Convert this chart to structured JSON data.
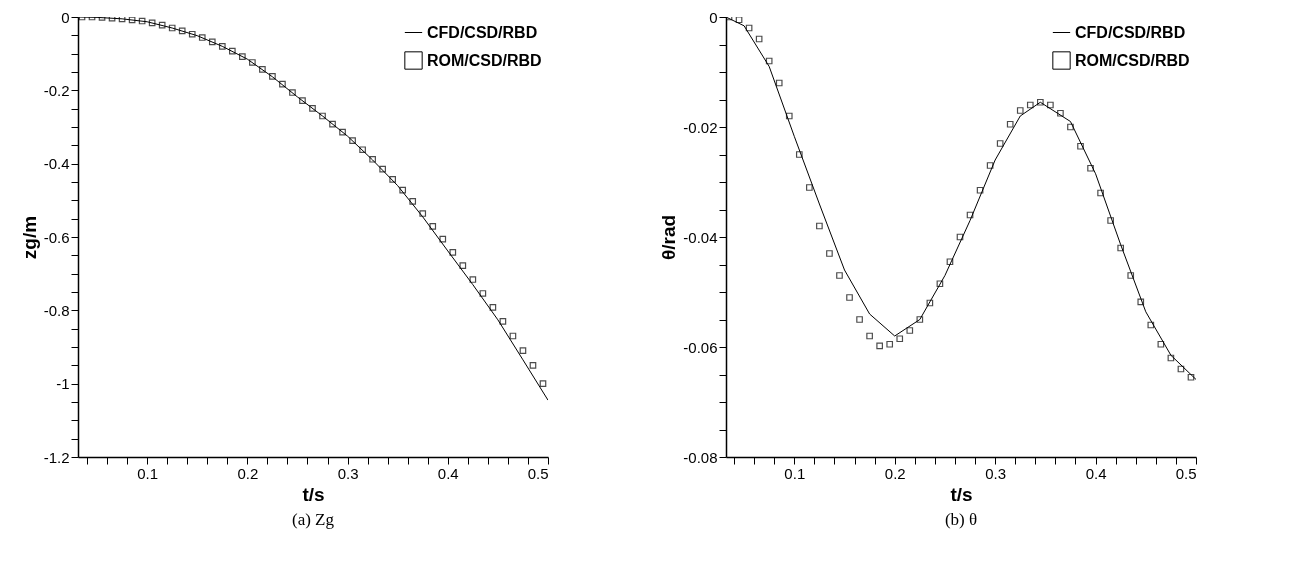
{
  "chart_data": [
    {
      "type": "line",
      "xlabel": "t/s",
      "ylabel": "zg/m",
      "annotations": [
        "(a) Zg"
      ],
      "legend": "top right",
      "grid": false,
      "xlim": [
        0.031,
        0.5
      ],
      "xticks": [
        {
          "value": 0.04,
          "label": null
        },
        {
          "value": 0.06,
          "label": null
        },
        {
          "value": 0.08,
          "label": null
        },
        0.1,
        {
          "value": 0.12,
          "label": null
        },
        {
          "value": 0.14,
          "label": null
        },
        {
          "value": 0.16,
          "label": null
        },
        {
          "value": 0.18,
          "label": null
        },
        0.2,
        {
          "value": 0.22,
          "label": null
        },
        {
          "value": 0.24,
          "label": null
        },
        {
          "value": 0.26,
          "label": null
        },
        {
          "value": 0.28,
          "label": null
        },
        0.3,
        {
          "value": 0.32,
          "label": null
        },
        {
          "value": 0.34,
          "label": null
        },
        {
          "value": 0.36,
          "label": null
        },
        {
          "value": 0.38,
          "label": null
        },
        0.4,
        {
          "value": 0.42,
          "label": null
        },
        {
          "value": 0.44,
          "label": null
        },
        {
          "value": 0.46,
          "label": null
        },
        {
          "value": 0.48,
          "label": null
        },
        0.5
      ],
      "ylim": [
        -1.2,
        0
      ],
      "yticks": [
        -1.2,
        {
          "value": -1.15,
          "label": null
        },
        {
          "value": -1.1,
          "label": null
        },
        {
          "value": -1.05,
          "label": null
        },
        -1,
        {
          "value": -0.95,
          "label": null
        },
        {
          "value": -0.9,
          "label": null
        },
        {
          "value": -0.85,
          "label": null
        },
        -0.8,
        {
          "value": -0.75,
          "label": null
        },
        {
          "value": -0.7,
          "label": null
        },
        {
          "value": -0.65,
          "label": null
        },
        -0.6,
        {
          "value": -0.55,
          "label": null
        },
        {
          "value": -0.5,
          "label": null
        },
        {
          "value": -0.45,
          "label": null
        },
        -0.4,
        {
          "value": -0.35,
          "label": null
        },
        {
          "value": -0.3,
          "label": null
        },
        {
          "value": -0.25,
          "label": null
        },
        -0.2,
        {
          "value": -0.15,
          "label": null
        },
        {
          "value": -0.1,
          "label": null
        },
        {
          "value": -0.05,
          "label": null
        },
        0
      ],
      "series": [
        {
          "name": "CFD/CSD/RBD",
          "type": "line",
          "color": "#000000",
          "line_style": "solid",
          "x": [
            0.031,
            0.05,
            0.075,
            0.1,
            0.125,
            0.15,
            0.175,
            0.2,
            0.225,
            0.25,
            0.275,
            0.3,
            0.325,
            0.35,
            0.375,
            0.4,
            0.425,
            0.45,
            0.475,
            0.5
          ],
          "values": [
            0,
            -0.001,
            -0.005,
            -0.013,
            -0.03,
            -0.051,
            -0.08,
            -0.115,
            -0.163,
            -0.218,
            -0.27,
            -0.325,
            -0.39,
            -0.46,
            -0.545,
            -0.638,
            -0.73,
            -0.826,
            -0.935,
            -1.045
          ]
        },
        {
          "name": "ROM/CSD/RBD",
          "type": "scatter",
          "color": "#000000",
          "marker": "square",
          "x": [
            0.035,
            0.045,
            0.055,
            0.065,
            0.075,
            0.085,
            0.095,
            0.105,
            0.115,
            0.125,
            0.135,
            0.145,
            0.155,
            0.165,
            0.175,
            0.185,
            0.195,
            0.205,
            0.215,
            0.225,
            0.235,
            0.245,
            0.255,
            0.265,
            0.275,
            0.285,
            0.295,
            0.305,
            0.315,
            0.325,
            0.335,
            0.345,
            0.355,
            0.365,
            0.375,
            0.385,
            0.395,
            0.405,
            0.415,
            0.425,
            0.435,
            0.445,
            0.455,
            0.465,
            0.475,
            0.485,
            0.495
          ],
          "values": [
            0,
            0,
            -0.001,
            -0.003,
            -0.005,
            -0.008,
            -0.011,
            -0.016,
            -0.022,
            -0.03,
            -0.038,
            -0.047,
            -0.056,
            -0.068,
            -0.08,
            -0.093,
            -0.108,
            -0.124,
            -0.143,
            -0.162,
            -0.183,
            -0.206,
            -0.228,
            -0.249,
            -0.27,
            -0.292,
            -0.314,
            -0.337,
            -0.362,
            -0.388,
            -0.415,
            -0.443,
            -0.472,
            -0.503,
            -0.536,
            -0.571,
            -0.606,
            -0.642,
            -0.678,
            -0.716,
            -0.754,
            -0.792,
            -0.83,
            -0.87,
            -0.91,
            -0.95,
            -1.0
          ]
        }
      ]
    },
    {
      "type": "line",
      "xlabel": "t/s",
      "ylabel": "θ/rad",
      "annotations": [
        "(b) θ"
      ],
      "legend": "top right",
      "grid": false,
      "xlim": [
        0.032,
        0.5
      ],
      "xticks": [
        {
          "value": 0.04,
          "label": null
        },
        {
          "value": 0.06,
          "label": null
        },
        {
          "value": 0.08,
          "label": null
        },
        0.1,
        {
          "value": 0.12,
          "label": null
        },
        {
          "value": 0.14,
          "label": null
        },
        {
          "value": 0.16,
          "label": null
        },
        {
          "value": 0.18,
          "label": null
        },
        0.2,
        {
          "value": 0.22,
          "label": null
        },
        {
          "value": 0.24,
          "label": null
        },
        {
          "value": 0.26,
          "label": null
        },
        {
          "value": 0.28,
          "label": null
        },
        0.3,
        {
          "value": 0.32,
          "label": null
        },
        {
          "value": 0.34,
          "label": null
        },
        {
          "value": 0.36,
          "label": null
        },
        {
          "value": 0.38,
          "label": null
        },
        0.4,
        {
          "value": 0.42,
          "label": null
        },
        {
          "value": 0.44,
          "label": null
        },
        {
          "value": 0.46,
          "label": null
        },
        {
          "value": 0.48,
          "label": null
        },
        0.5
      ],
      "ylim": [
        -0.08,
        0
      ],
      "yticks": [
        -0.08,
        {
          "value": -0.075,
          "label": null
        },
        {
          "value": -0.07,
          "label": null
        },
        {
          "value": -0.065,
          "label": null
        },
        -0.06,
        {
          "value": -0.055,
          "label": null
        },
        {
          "value": -0.05,
          "label": null
        },
        {
          "value": -0.045,
          "label": null
        },
        -0.04,
        {
          "value": -0.035,
          "label": null
        },
        {
          "value": -0.03,
          "label": null
        },
        {
          "value": -0.025,
          "label": null
        },
        -0.02,
        {
          "value": -0.015,
          "label": null
        },
        {
          "value": -0.01,
          "label": null
        },
        {
          "value": -0.005,
          "label": null
        },
        0
      ],
      "series": [
        {
          "name": "CFD/CSD/RBD",
          "type": "line",
          "color": "#000000",
          "line_style": "solid",
          "x": [
            0.032,
            0.05,
            0.075,
            0.1,
            0.125,
            0.15,
            0.175,
            0.2,
            0.225,
            0.25,
            0.275,
            0.3,
            0.325,
            0.345,
            0.375,
            0.4,
            0.425,
            0.45,
            0.475,
            0.5
          ],
          "values": [
            0,
            -0.0016,
            -0.009,
            -0.0217,
            -0.034,
            -0.046,
            -0.054,
            -0.058,
            -0.055,
            -0.047,
            -0.037,
            -0.026,
            -0.018,
            -0.0155,
            -0.019,
            -0.0285,
            -0.0414,
            -0.0536,
            -0.0615,
            -0.0659
          ]
        },
        {
          "name": "ROM/CSD/RBD",
          "type": "scatter",
          "color": "#000000",
          "marker": "square",
          "x": [
            0.035,
            0.045,
            0.055,
            0.065,
            0.075,
            0.085,
            0.095,
            0.105,
            0.115,
            0.125,
            0.135,
            0.145,
            0.155,
            0.165,
            0.175,
            0.185,
            0.195,
            0.205,
            0.215,
            0.225,
            0.235,
            0.245,
            0.255,
            0.265,
            0.275,
            0.285,
            0.295,
            0.305,
            0.315,
            0.325,
            0.335,
            0.345,
            0.355,
            0.365,
            0.375,
            0.385,
            0.395,
            0.405,
            0.415,
            0.425,
            0.435,
            0.445,
            0.455,
            0.465,
            0.475,
            0.485,
            0.495
          ],
          "values": [
            0,
            -0.0005,
            -0.002,
            -0.004,
            -0.008,
            -0.012,
            -0.018,
            -0.025,
            -0.031,
            -0.038,
            -0.043,
            -0.047,
            -0.051,
            -0.055,
            -0.058,
            -0.0598,
            -0.0595,
            -0.0585,
            -0.057,
            -0.055,
            -0.052,
            -0.0485,
            -0.0445,
            -0.04,
            -0.036,
            -0.0315,
            -0.027,
            -0.023,
            -0.0195,
            -0.017,
            -0.016,
            -0.0155,
            -0.016,
            -0.0175,
            -0.02,
            -0.0235,
            -0.0275,
            -0.032,
            -0.037,
            -0.042,
            -0.047,
            -0.0518,
            -0.056,
            -0.0595,
            -0.062,
            -0.064,
            -0.0655
          ]
        }
      ]
    }
  ]
}
